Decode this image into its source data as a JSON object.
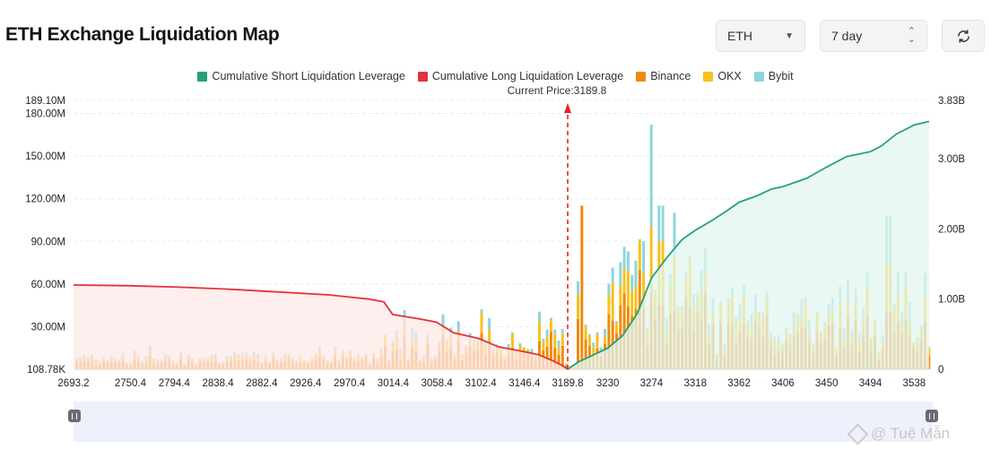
{
  "header": {
    "title": "ETH Exchange Liquidation Map",
    "coin_select": "ETH",
    "period_select": "7 day",
    "refresh_icon": "refresh-icon"
  },
  "current_price_label": "Current Price:3189.8",
  "watermark": "@ Tuệ Mẫn",
  "colors": {
    "short_cumulative": "#26a17b",
    "long_cumulative": "#e5323c",
    "binance": "#f08a0c",
    "okx": "#f7c21a",
    "bybit": "#8fd5dc",
    "short_fill": "#e3f5ef",
    "long_fill": "#fde8e8",
    "current_price": "#e02626"
  },
  "chart_data": {
    "type": "bar",
    "title": "ETH Exchange Liquidation Map",
    "legend": [
      "Cumulative Short Liquidation Leverage",
      "Cumulative Long Liquidation Leverage",
      "Binance",
      "OKX",
      "Bybit"
    ],
    "legend_position": "top-center",
    "y_left_ticks": [
      "108.78K",
      "30.00M",
      "60.00M",
      "90.00M",
      "120.00M",
      "150.00M",
      "180.00M",
      "189.10M"
    ],
    "y_left_range": [
      108780,
      189100000
    ],
    "y_right_ticks": [
      "0",
      "1.00B",
      "2.00B",
      "3.00B",
      "3.83B"
    ],
    "y_right_range": [
      0,
      3830000000
    ],
    "x_ticks": [
      "2693.2",
      "2750.4",
      "2794.4",
      "2838.4",
      "2882.4",
      "2926.4",
      "2970.4",
      "3014.4",
      "3058.4",
      "3102.4",
      "3146.4",
      "3189.8",
      "3230",
      "3274",
      "3318",
      "3362",
      "3406",
      "3450",
      "3494",
      "3538"
    ],
    "x_range": [
      2693.2,
      3553
    ],
    "current_price": 3189.8,
    "long_cumulative": {
      "name": "Cumulative Long Liquidation Leverage",
      "x": [
        2693.2,
        2750,
        2800,
        2850,
        2900,
        2950,
        2990,
        3005,
        3014,
        3040,
        3058,
        3075,
        3100,
        3120,
        3146,
        3160,
        3175,
        3185,
        3189.8
      ],
      "y": [
        1200000000.0,
        1190000000.0,
        1170000000.0,
        1140000000.0,
        1100000000.0,
        1060000000.0,
        1000000000.0,
        960000000.0,
        780000000.0,
        720000000.0,
        670000000.0,
        520000000.0,
        440000000.0,
        320000000.0,
        250000000.0,
        210000000.0,
        120000000.0,
        50000000.0,
        0
      ]
    },
    "short_cumulative": {
      "name": "Cumulative Short Liquidation Leverage",
      "x": [
        3189.8,
        3200,
        3215,
        3230,
        3245,
        3260,
        3274,
        3290,
        3305,
        3318,
        3335,
        3350,
        3362,
        3380,
        3395,
        3406,
        3430,
        3450,
        3470,
        3494,
        3505,
        3520,
        3538,
        3553
      ],
      "y": [
        0,
        100000000.0,
        200000000.0,
        300000000.0,
        480000000.0,
        800000000.0,
        1300000000.0,
        1600000000.0,
        1850000000.0,
        1980000000.0,
        2120000000.0,
        2260000000.0,
        2380000000.0,
        2470000000.0,
        2570000000.0,
        2600000000.0,
        2720000000.0,
        2880000000.0,
        3030000000.0,
        3100000000.0,
        3180000000.0,
        3350000000.0,
        3480000000.0,
        3530000000.0
      ]
    },
    "bar_series": [
      "Binance",
      "OKX",
      "Bybit"
    ],
    "bars_highlights": [
      {
        "x": 3202,
        "binance": 115000000,
        "okx": 0,
        "bybit": 0
      },
      {
        "x": 3274,
        "binance": 55000000,
        "okx": 45000000,
        "bybit": 72000000
      },
      {
        "x": 3282,
        "binance": 45000000,
        "okx": 45000000,
        "bybit": 25000000
      },
      {
        "x": 3296,
        "binance": 40000000,
        "okx": 40000000,
        "bybit": 30000000
      },
      {
        "x": 3511,
        "binance": 40000000,
        "okx": 35000000,
        "bybit": 33000000
      }
    ]
  }
}
